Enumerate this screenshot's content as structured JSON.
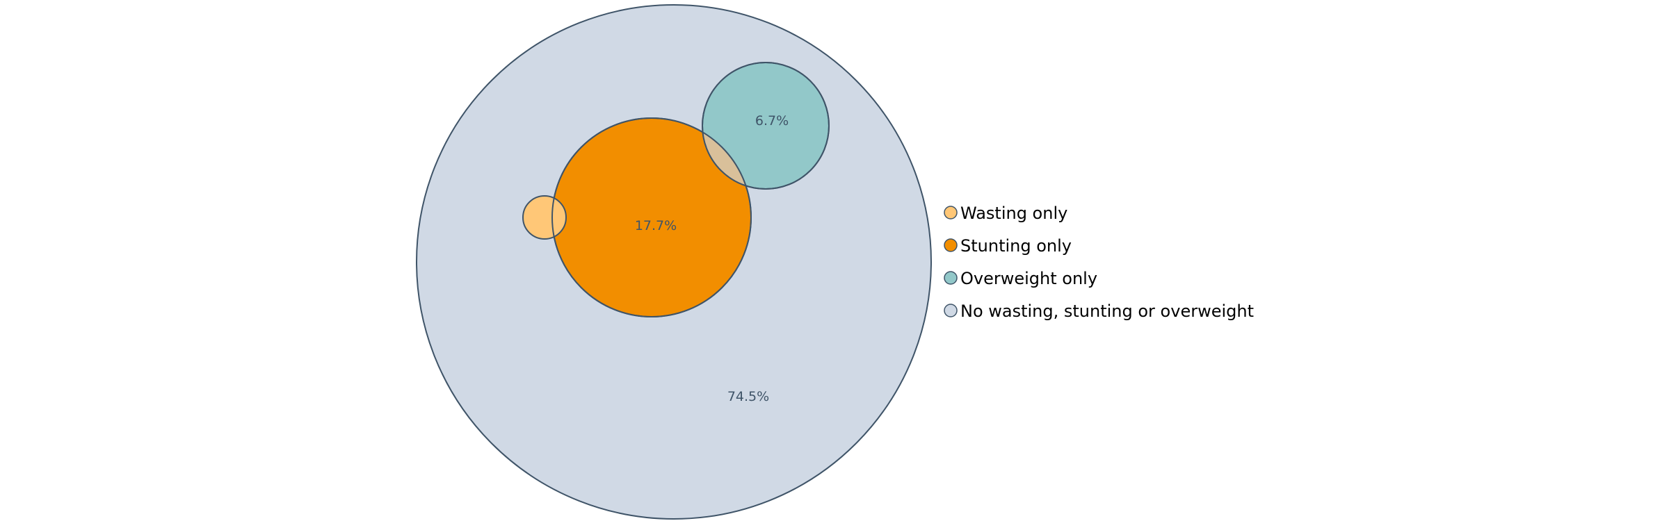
{
  "chart_data": {
    "type": "venn",
    "sets": [
      {
        "name": "Wasting only",
        "value": null,
        "color": "#ffc777"
      },
      {
        "name": "Stunting only",
        "value": 17.7,
        "label": "17.7%",
        "color": "#f28e00"
      },
      {
        "name": "Overweight only",
        "value": 6.7,
        "label": "6.7%",
        "color": "#92c8c9"
      },
      {
        "name": "No wasting, stunting or overweight",
        "value": 74.5,
        "label": "74.5%",
        "color": "#d0d9e5"
      }
    ],
    "overlap_color": "#d9c09a",
    "outline_color": "#3f5468",
    "label_color": "#3f5468",
    "legend_position": "right"
  }
}
